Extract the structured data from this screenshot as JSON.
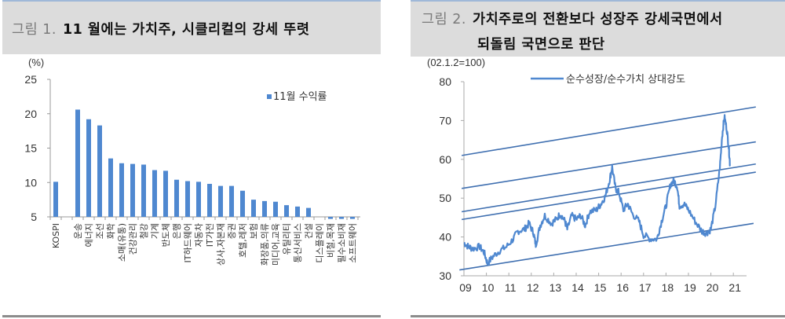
{
  "figure1": {
    "number_label": "그림 1.",
    "title": "11 월에는 가치주, 시클리컬의 강세 뚜렷"
  },
  "figure2": {
    "number_label": "그림 2.",
    "title_line1": "가치주로의 전환보다 성장주 강세국면에서",
    "title_line2": "되돌림 국면으로 판단"
  },
  "chart_data": [
    {
      "type": "bar",
      "title": "11 월에는 가치주, 시클리컬의 강세 뚜렷",
      "ylabel": "(%)",
      "xlabel": "",
      "ylim": [
        5,
        25
      ],
      "yticks": [
        5,
        10,
        15,
        20,
        25
      ],
      "grid": false,
      "legend_position": "top-right",
      "categories": [
        "KOSPI",
        "",
        "운송",
        "에너지",
        "조선",
        "화학",
        "소매(유통)",
        "건강관리",
        "철강",
        "기계",
        "반도체",
        "은행",
        "IT하드웨어",
        "자동차",
        "IT가전",
        "상사,자본재",
        "증권",
        "호텔,레저",
        "보험",
        "화장품,의류",
        "미디어,교육",
        "유틸리티",
        "통신서비스",
        "건설",
        "디스플레이",
        "비철,목재",
        "필수소비재",
        "소프트웨어"
      ],
      "series": [
        {
          "name": "11월 수익률",
          "color": "#4f88d0",
          "values": [
            10.1,
            null,
            20.6,
            19.2,
            18.3,
            13.5,
            12.8,
            12.7,
            12.6,
            11.8,
            11.7,
            10.4,
            10.2,
            10.1,
            9.8,
            9.5,
            9.5,
            8.8,
            7.5,
            7.3,
            7.2,
            6.7,
            6.5,
            6.3,
            5.0,
            4.7,
            4.7,
            4.7
          ]
        }
      ]
    },
    {
      "type": "line",
      "title": "가치주로의 전환보다 성장주 강세국면에서 되돌림 국면으로 판단",
      "ylabel": "(02.1.2=100)",
      "xlabel": "",
      "ylim": [
        30,
        80
      ],
      "yticks": [
        30,
        40,
        50,
        60,
        70,
        80
      ],
      "x": [
        "09",
        "10",
        "11",
        "12",
        "13",
        "14",
        "15",
        "16",
        "17",
        "18",
        "19",
        "20",
        "21"
      ],
      "grid": false,
      "legend_position": "top",
      "series": [
        {
          "name": "순수성장/순수가치 상대강도",
          "color": "#4f88d0",
          "points": [
            [
              2009.0,
              38.5
            ],
            [
              2009.2,
              37.5
            ],
            [
              2009.4,
              37.0
            ],
            [
              2009.7,
              37.5
            ],
            [
              2009.9,
              36.0
            ],
            [
              2010.05,
              33.2
            ],
            [
              2010.3,
              35.0
            ],
            [
              2010.6,
              36.5
            ],
            [
              2010.9,
              37.5
            ],
            [
              2011.2,
              39.5
            ],
            [
              2011.4,
              41.5
            ],
            [
              2011.7,
              42.0
            ],
            [
              2011.9,
              43.5
            ],
            [
              2012.1,
              41.0
            ],
            [
              2012.2,
              38.0
            ],
            [
              2012.4,
              43.0
            ],
            [
              2012.6,
              45.5
            ],
            [
              2012.9,
              43.5
            ],
            [
              2013.1,
              44.5
            ],
            [
              2013.3,
              46.0
            ],
            [
              2013.5,
              44.0
            ],
            [
              2013.6,
              42.0
            ],
            [
              2013.8,
              45.5
            ],
            [
              2014.0,
              44.5
            ],
            [
              2014.2,
              45.5
            ],
            [
              2014.4,
              43.0
            ],
            [
              2014.6,
              46.5
            ],
            [
              2014.9,
              47.0
            ],
            [
              2015.1,
              48.5
            ],
            [
              2015.3,
              50.5
            ],
            [
              2015.5,
              55.0
            ],
            [
              2015.6,
              58.0
            ],
            [
              2015.75,
              52.5
            ],
            [
              2015.9,
              51.5
            ],
            [
              2016.1,
              47.0
            ],
            [
              2016.3,
              48.5
            ],
            [
              2016.5,
              46.0
            ],
            [
              2016.8,
              44.0
            ],
            [
              2017.0,
              40.5
            ],
            [
              2017.3,
              39.5
            ],
            [
              2017.6,
              39.5
            ],
            [
              2017.8,
              44.0
            ],
            [
              2018.0,
              48.0
            ],
            [
              2018.2,
              53.5
            ],
            [
              2018.35,
              54.5
            ],
            [
              2018.5,
              53.0
            ],
            [
              2018.6,
              48.0
            ],
            [
              2018.8,
              48.5
            ],
            [
              2019.0,
              47.0
            ],
            [
              2019.3,
              44.0
            ],
            [
              2019.6,
              41.5
            ],
            [
              2019.8,
              41.0
            ],
            [
              2020.0,
              42.0
            ],
            [
              2020.2,
              48.0
            ],
            [
              2020.4,
              58.0
            ],
            [
              2020.5,
              66.0
            ],
            [
              2020.6,
              71.0
            ],
            [
              2020.7,
              68.0
            ],
            [
              2020.8,
              63.0
            ],
            [
              2020.85,
              58.5
            ]
          ]
        }
      ],
      "trend_lines": [
        {
          "label": "channel-1",
          "start": [
            2008.9,
            61.0
          ],
          "end": [
            2022.0,
            73.5
          ]
        },
        {
          "label": "channel-2",
          "start": [
            2008.9,
            52.5
          ],
          "end": [
            2022.0,
            64.5
          ]
        },
        {
          "label": "channel-3",
          "start": [
            2008.9,
            46.5
          ],
          "end": [
            2022.0,
            58.8
          ]
        },
        {
          "label": "channel-4",
          "start": [
            2008.9,
            44.5
          ],
          "end": [
            2022.0,
            56.7
          ]
        },
        {
          "label": "channel-5",
          "start": [
            2008.8,
            31.5
          ],
          "end": [
            2021.9,
            43.5
          ]
        }
      ]
    }
  ]
}
